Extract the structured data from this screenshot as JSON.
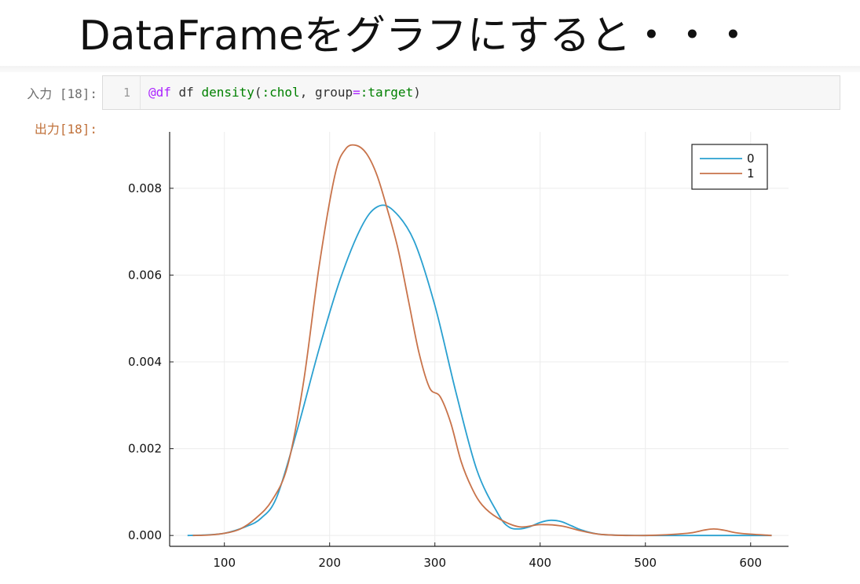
{
  "slide": {
    "title": "DataFrameをグラフにすると・・・"
  },
  "cell": {
    "in_prompt": "入力 [18]:",
    "out_prompt": "出力[18]:",
    "line_number": "1",
    "code": {
      "macro": "@df",
      "t1": " df ",
      "fn": "density",
      "t2": "(",
      "sym1": ":chol",
      "t3": ", group",
      "op": "=",
      "sym2": ":target",
      "t4": ")"
    }
  },
  "colors": {
    "series0": "#2aa0d0",
    "series1": "#c8734a",
    "axis": "#222222",
    "grid": "#ececec"
  },
  "chart_data": {
    "type": "line",
    "title": "",
    "xlabel": "",
    "ylabel": "",
    "xlim": [
      48,
      636
    ],
    "ylim": [
      -0.00025,
      0.0093
    ],
    "x_ticks": [
      100,
      200,
      300,
      400,
      500,
      600
    ],
    "y_ticks": [
      0.0,
      0.002,
      0.004,
      0.006,
      0.008
    ],
    "x_tick_labels": [
      "100",
      "200",
      "300",
      "400",
      "500",
      "600"
    ],
    "y_tick_labels": [
      "0.000",
      "0.002",
      "0.004",
      "0.006",
      "0.008"
    ],
    "grid": true,
    "legend_position": "top-right",
    "series": [
      {
        "name": "0",
        "x": [
          65,
          80,
          100,
          120,
          135,
          150,
          170,
          190,
          210,
          230,
          245,
          260,
          280,
          300,
          320,
          340,
          360,
          370,
          380,
          390,
          400,
          410,
          420,
          430,
          440,
          460,
          500,
          560,
          620
        ],
        "y": [
          0.0,
          1e-05,
          5e-05,
          0.0002,
          0.0004,
          0.0009,
          0.0025,
          0.0043,
          0.0059,
          0.0071,
          0.00757,
          0.0075,
          0.0068,
          0.0053,
          0.0033,
          0.0015,
          0.0005,
          0.0002,
          0.00015,
          0.0002,
          0.0003,
          0.00035,
          0.00032,
          0.00022,
          0.00012,
          2e-05,
          0.0,
          0.0,
          0.0
        ]
      },
      {
        "name": "1",
        "x": [
          70,
          85,
          100,
          115,
          130,
          145,
          160,
          175,
          190,
          205,
          215,
          225,
          235,
          245,
          255,
          265,
          275,
          285,
          295,
          305,
          315,
          325,
          335,
          345,
          360,
          380,
          400,
          420,
          440,
          460,
          500,
          540,
          555,
          565,
          575,
          590,
          620
        ],
        "y": [
          0.0,
          1e-05,
          5e-05,
          0.00015,
          0.0004,
          0.0008,
          0.0016,
          0.0035,
          0.0062,
          0.0083,
          0.0089,
          0.00899,
          0.0088,
          0.0083,
          0.0075,
          0.0066,
          0.0054,
          0.0042,
          0.0034,
          0.0032,
          0.0026,
          0.0017,
          0.0011,
          0.0007,
          0.0004,
          0.0002,
          0.00025,
          0.00022,
          0.0001,
          2e-05,
          0.0,
          5e-05,
          0.00012,
          0.00015,
          0.00012,
          5e-05,
          0.0
        ]
      }
    ]
  }
}
